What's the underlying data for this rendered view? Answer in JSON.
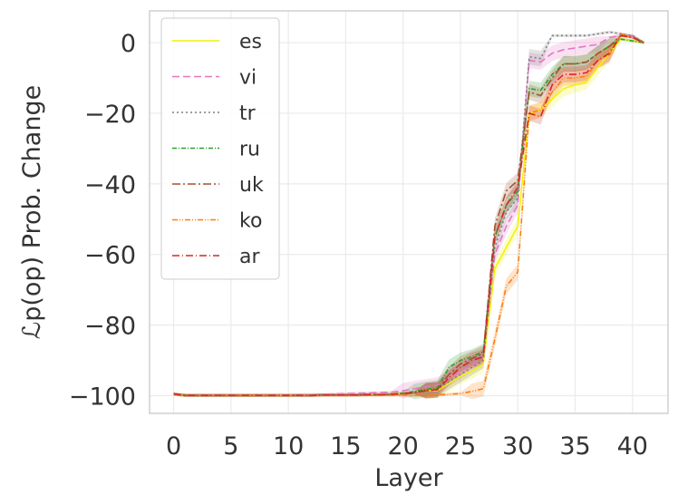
{
  "chart_data": {
    "type": "line",
    "xlabel": "Layer",
    "ylabel": "ℒp(op) Prob. Change",
    "xlim": [
      -2.1,
      43.1
    ],
    "ylim": [
      -105,
      9
    ],
    "xticks": [
      "0",
      "5",
      "10",
      "15",
      "20",
      "25",
      "30",
      "35",
      "40"
    ],
    "yticks": [
      "−100",
      "−80",
      "−60",
      "−40",
      "−20",
      "0"
    ],
    "grid": true,
    "legend_position": "top-left",
    "x": [
      0,
      1,
      2,
      3,
      4,
      5,
      6,
      7,
      8,
      9,
      10,
      11,
      12,
      13,
      14,
      15,
      16,
      17,
      18,
      19,
      20,
      21,
      22,
      23,
      24,
      25,
      26,
      27,
      28,
      29,
      30,
      31,
      32,
      33,
      34,
      35,
      36,
      37,
      38,
      39,
      40,
      41
    ],
    "series": [
      {
        "name": "es",
        "color": "#f2f20c",
        "dash": "solid",
        "values": [
          -99.6,
          -99.9,
          -99.9,
          -99.9,
          -99.9,
          -99.9,
          -99.9,
          -99.9,
          -99.9,
          -99.9,
          -99.9,
          -99.9,
          -99.9,
          -99.8,
          -99.8,
          -99.8,
          -99.8,
          -99.7,
          -99.6,
          -99.5,
          -99.3,
          -99.0,
          -98.6,
          -98.5,
          -96.5,
          -94.5,
          -93.0,
          -91.0,
          -64.0,
          -58.0,
          -52.0,
          -20.0,
          -19.0,
          -16.0,
          -13.0,
          -12.0,
          -11.0,
          -7.0,
          -3.0,
          1.0,
          0.5,
          0.0
        ]
      },
      {
        "name": "vi",
        "color": "#e377c2",
        "dash": "8,4",
        "values": [
          -99.5,
          -99.8,
          -99.8,
          -99.8,
          -99.8,
          -99.8,
          -99.8,
          -99.8,
          -99.8,
          -99.8,
          -99.8,
          -99.7,
          -99.7,
          -99.6,
          -99.5,
          -99.4,
          -99.3,
          -99.2,
          -99.1,
          -99.0,
          -98.6,
          -98.0,
          -97.5,
          -97.0,
          -95.0,
          -93.0,
          -91.0,
          -89.0,
          -60.0,
          -52.0,
          -46.0,
          -5.0,
          -5.5,
          -3.0,
          -2.0,
          -1.5,
          -1.0,
          -0.5,
          1.5,
          2.0,
          2.0,
          0.0
        ]
      },
      {
        "name": "tr",
        "color": "#7f7f7f",
        "dash": "2,3",
        "values": [
          -99.5,
          -99.9,
          -99.9,
          -99.9,
          -99.9,
          -99.9,
          -99.9,
          -99.9,
          -99.9,
          -99.9,
          -99.9,
          -99.9,
          -99.9,
          -99.8,
          -99.8,
          -99.8,
          -99.8,
          -99.7,
          -99.7,
          -99.6,
          -99.4,
          -99.1,
          -98.6,
          -98.3,
          -96.0,
          -94.0,
          -92.0,
          -90.0,
          -58.0,
          -48.0,
          -44.0,
          -4.0,
          -4.5,
          2.0,
          2.0,
          2.0,
          2.0,
          2.5,
          3.0,
          2.5,
          2.0,
          0.0
        ]
      },
      {
        "name": "ru",
        "color": "#2ca02c",
        "dash": "5,2,1,2",
        "values": [
          -99.5,
          -99.9,
          -99.9,
          -99.9,
          -99.9,
          -99.9,
          -99.9,
          -99.9,
          -99.9,
          -99.9,
          -99.9,
          -99.9,
          -99.9,
          -99.8,
          -99.8,
          -99.8,
          -99.8,
          -99.7,
          -99.7,
          -99.6,
          -99.3,
          -98.8,
          -98.2,
          -97.8,
          -92.0,
          -90.0,
          -89.0,
          -87.5,
          -55.0,
          -46.0,
          -42.0,
          -13.0,
          -13.5,
          -9.0,
          -6.0,
          -6.0,
          -5.5,
          -3.0,
          -1.0,
          1.0,
          0.5,
          0.0
        ]
      },
      {
        "name": "uk",
        "color": "#a0522d",
        "dash": "9,3,2,3",
        "values": [
          -99.6,
          -99.9,
          -99.9,
          -99.9,
          -99.9,
          -99.9,
          -99.9,
          -99.9,
          -99.9,
          -99.9,
          -99.9,
          -99.9,
          -99.9,
          -99.8,
          -99.8,
          -99.8,
          -99.8,
          -99.7,
          -99.7,
          -99.6,
          -99.4,
          -99.1,
          -98.6,
          -98.3,
          -94.0,
          -91.0,
          -89.5,
          -88.0,
          -52.0,
          -42.0,
          -39.0,
          -14.0,
          -15.0,
          -10.0,
          -6.0,
          -6.0,
          -5.5,
          -3.0,
          -1.0,
          2.0,
          1.5,
          0.0
        ]
      },
      {
        "name": "ko",
        "color": "#ff7f0e",
        "dash": "6,2,1,2,1,2",
        "values": [
          -99.6,
          -99.9,
          -99.9,
          -99.9,
          -99.9,
          -99.9,
          -99.9,
          -99.9,
          -99.9,
          -99.9,
          -99.9,
          -99.9,
          -99.9,
          -99.9,
          -99.9,
          -99.9,
          -99.9,
          -99.9,
          -99.9,
          -99.9,
          -99.9,
          -99.9,
          -99.9,
          -99.8,
          -99.6,
          -99.4,
          -98.8,
          -98.0,
          -84.0,
          -69.0,
          -65.0,
          -20.0,
          -19.0,
          -14.0,
          -10.0,
          -10.0,
          -9.5,
          -5.0,
          -3.5,
          2.5,
          1.5,
          0.0
        ]
      },
      {
        "name": "ar",
        "color": "#d62728",
        "dash": "8,3,1,3",
        "values": [
          -99.5,
          -99.9,
          -99.9,
          -99.9,
          -99.9,
          -99.9,
          -99.9,
          -99.9,
          -99.9,
          -99.9,
          -99.9,
          -99.9,
          -99.9,
          -99.8,
          -99.8,
          -99.8,
          -99.8,
          -99.7,
          -99.7,
          -99.6,
          -99.4,
          -99.1,
          -98.6,
          -98.3,
          -95.0,
          -92.0,
          -90.0,
          -89.0,
          -55.0,
          -46.0,
          -41.0,
          -20.0,
          -21.0,
          -12.0,
          -9.0,
          -9.0,
          -8.5,
          -5.0,
          -3.0,
          2.0,
          1.5,
          0.0
        ]
      }
    ]
  }
}
